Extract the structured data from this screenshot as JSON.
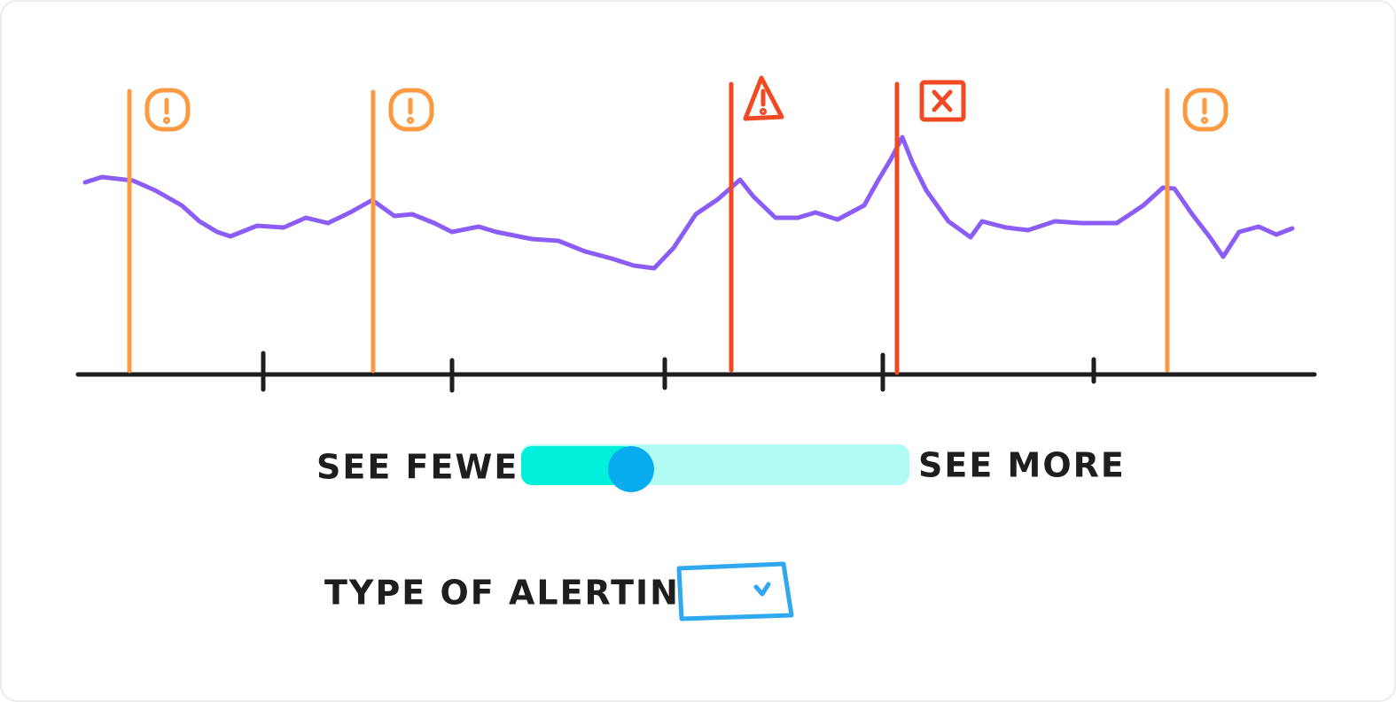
{
  "slider": {
    "min_label": "SEE FEWER",
    "max_label": "SEE MORE"
  },
  "alert_type": {
    "label": "TYPE OF ALERTING:"
  }
}
